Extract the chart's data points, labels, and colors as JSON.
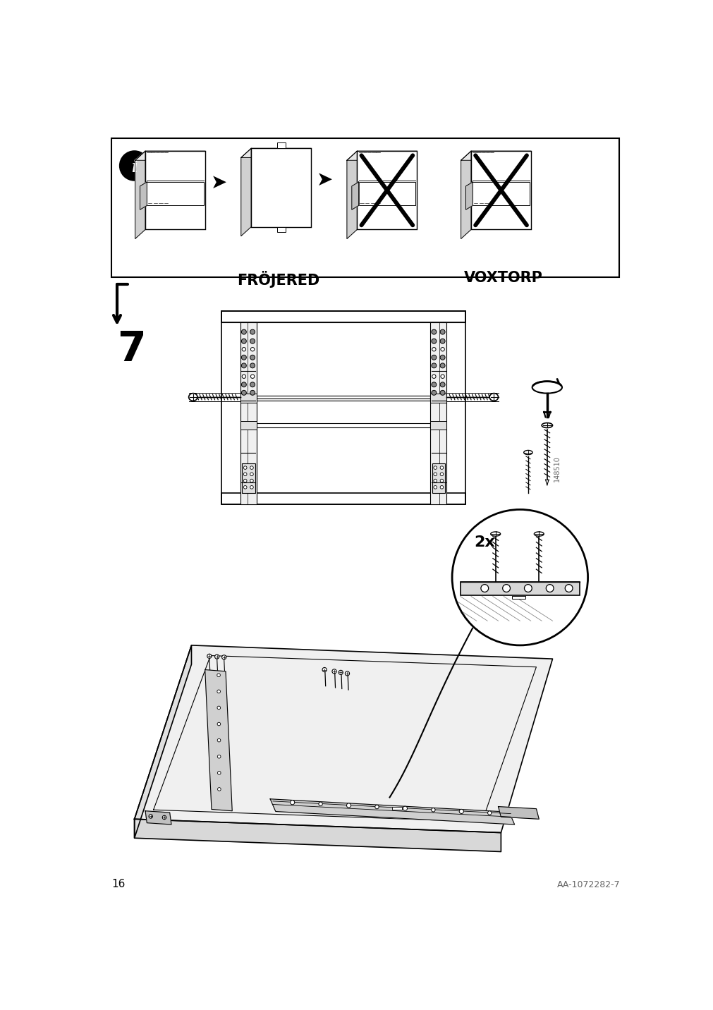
{
  "page_number": "16",
  "article_number": "AA-1072282-7",
  "background_color": "#ffffff",
  "line_color": "#000000",
  "frojered_label": "FRÖJERED",
  "voxtorp_label": "VOXTORP",
  "step_number": "7",
  "screw_label": "2x",
  "part_number": "148510"
}
